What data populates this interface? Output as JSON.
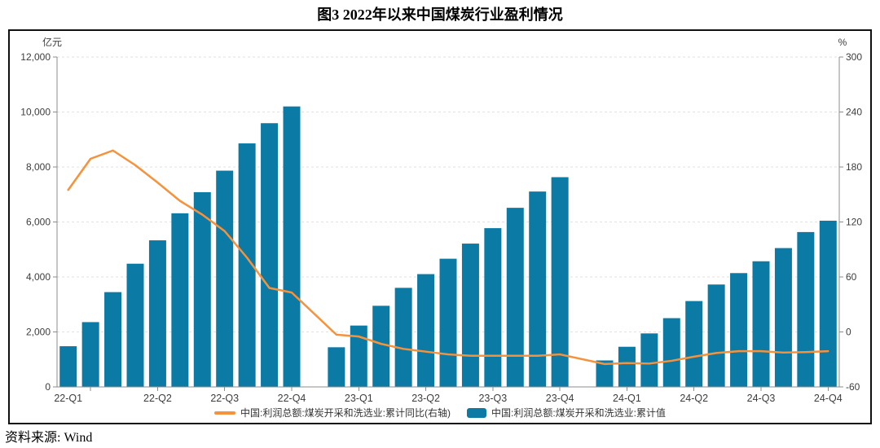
{
  "title": "图3  2022年以来中国煤炭行业盈利情况",
  "source": "资料来源: Wind",
  "axes": {
    "left_unit": "亿元",
    "right_unit": "%"
  },
  "legend": [
    {
      "type": "line",
      "label": "中国:利润总额:煤炭开采和洗选业:累计同比(右轴)"
    },
    {
      "type": "bar",
      "label": "中国:利润总额:煤炭开采和洗选业:累计值"
    }
  ],
  "colors": {
    "bar": "#0b7ba6",
    "line": "#f6923c",
    "grid": "#e2e2e2",
    "axis": "#8c8c8c",
    "tick_text": "#3d3d3d",
    "border": "#111111"
  },
  "chart_data": {
    "type": "bar+line",
    "categories": [
      "2022-02",
      "2022-03",
      "2022-04",
      "2022-05",
      "2022-06",
      "2022-07",
      "2022-08",
      "2022-09",
      "2022-10",
      "2022-11",
      "2022-12",
      "2023-01",
      "2023-02",
      "2023-03",
      "2023-04",
      "2023-05",
      "2023-06",
      "2023-07",
      "2023-08",
      "2023-09",
      "2023-10",
      "2023-11",
      "2023-12",
      "2024-01",
      "2024-02",
      "2024-03",
      "2024-04",
      "2024-05",
      "2024-06",
      "2024-07",
      "2024-08",
      "2024-09",
      "2024-10",
      "2024-11",
      "2024-12"
    ],
    "x_tick_labels": [
      {
        "index": 0,
        "label": "22-Q1"
      },
      {
        "index": 4,
        "label": "22-Q2"
      },
      {
        "index": 7,
        "label": "22-Q3"
      },
      {
        "index": 10,
        "label": "22-Q4"
      },
      {
        "index": 13,
        "label": "23-Q1"
      },
      {
        "index": 16,
        "label": "23-Q2"
      },
      {
        "index": 19,
        "label": "23-Q3"
      },
      {
        "index": 22,
        "label": "23-Q4"
      },
      {
        "index": 25,
        "label": "24-Q1"
      },
      {
        "index": 28,
        "label": "24-Q2"
      },
      {
        "index": 31,
        "label": "24-Q3"
      },
      {
        "index": 34,
        "label": "24-Q4"
      }
    ],
    "series": [
      {
        "name": "中国:利润总额:煤炭开采和洗选业:累计值",
        "type": "bar",
        "axis": "left",
        "unit": "亿元",
        "values": [
          1480,
          2357,
          3448,
          4482,
          5332,
          6316,
          7083,
          7866,
          8858,
          9593,
          10202,
          null,
          1442,
          2232,
          2951,
          3604,
          4103,
          4663,
          5213,
          5775,
          6515,
          7107,
          7629,
          null,
          963,
          1460,
          1946,
          2501,
          3123,
          3725,
          4140,
          4570,
          5050,
          5633,
          6046
        ]
      },
      {
        "name": "中国:利润总额:煤炭开采和洗选业:累计同比(右轴)",
        "type": "line",
        "axis": "right",
        "unit": "%",
        "values": [
          155,
          189,
          198,
          182,
          163,
          143,
          128,
          110,
          81,
          48,
          43,
          null,
          -3,
          -5,
          -13,
          -18.5,
          -21.5,
          -24.5,
          -26,
          -26,
          -26,
          -26,
          -24.5,
          null,
          -35,
          -34,
          -34.5,
          -31.5,
          -27,
          -23,
          -21,
          -21,
          -22.5,
          -22,
          -21
        ]
      }
    ],
    "left_axis": {
      "label": "亿元",
      "min": 0,
      "max": 12000,
      "ticks": [
        {
          "value": 0,
          "label": "0"
        },
        {
          "value": 2000,
          "label": "2,000"
        },
        {
          "value": 4000,
          "label": "4,000"
        },
        {
          "value": 6000,
          "label": "6,000"
        },
        {
          "value": 8000,
          "label": "8,000"
        },
        {
          "value": 10000,
          "label": "10,000"
        },
        {
          "value": 12000,
          "label": "12,000"
        }
      ]
    },
    "right_axis": {
      "label": "%",
      "min": -60,
      "max": 300,
      "ticks": [
        {
          "value": -60,
          "label": "-60"
        },
        {
          "value": 0,
          "label": "0"
        },
        {
          "value": 60,
          "label": "60"
        },
        {
          "value": 120,
          "label": "120"
        },
        {
          "value": 180,
          "label": "180"
        },
        {
          "value": 240,
          "label": "240"
        },
        {
          "value": 300,
          "label": "300"
        }
      ]
    },
    "grid": true,
    "legend_position": "bottom-center"
  }
}
